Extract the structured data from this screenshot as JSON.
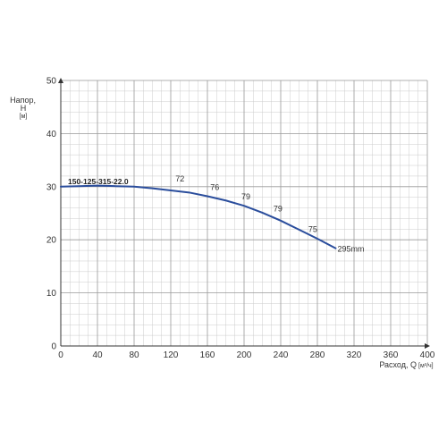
{
  "chart_data": {
    "type": "line",
    "grid": true,
    "xlim": [
      0,
      400
    ],
    "ylim": [
      0,
      50
    ],
    "x_ticks": [
      0,
      40,
      80,
      120,
      160,
      200,
      240,
      280,
      320,
      360,
      400
    ],
    "y_ticks": [
      0,
      10,
      20,
      30,
      40,
      50
    ],
    "xlabel": "Расход, Q",
    "xunit": "[м³/ч]",
    "ylabel_line1": "Напор,",
    "ylabel_line2": "H",
    "yunit": "[м]",
    "model": "150-125-315-22.0",
    "series": [
      {
        "name": "295mm",
        "color": "#2a4d9c",
        "x": [
          0,
          20,
          40,
          60,
          80,
          100,
          120,
          140,
          160,
          180,
          200,
          220,
          240,
          260,
          280,
          300
        ],
        "y": [
          30.0,
          30.1,
          30.2,
          30.1,
          30.0,
          29.7,
          29.3,
          28.9,
          28.2,
          27.4,
          26.4,
          25.1,
          23.6,
          21.9,
          20.2,
          18.4
        ]
      }
    ],
    "efficiency_labels": [
      {
        "text": "72",
        "x": 130,
        "y": 31.0
      },
      {
        "text": "76",
        "x": 168,
        "y": 29.4
      },
      {
        "text": "79",
        "x": 202,
        "y": 27.6
      },
      {
        "text": "79",
        "x": 237,
        "y": 25.3
      },
      {
        "text": "75",
        "x": 275,
        "y": 21.5
      }
    ]
  }
}
